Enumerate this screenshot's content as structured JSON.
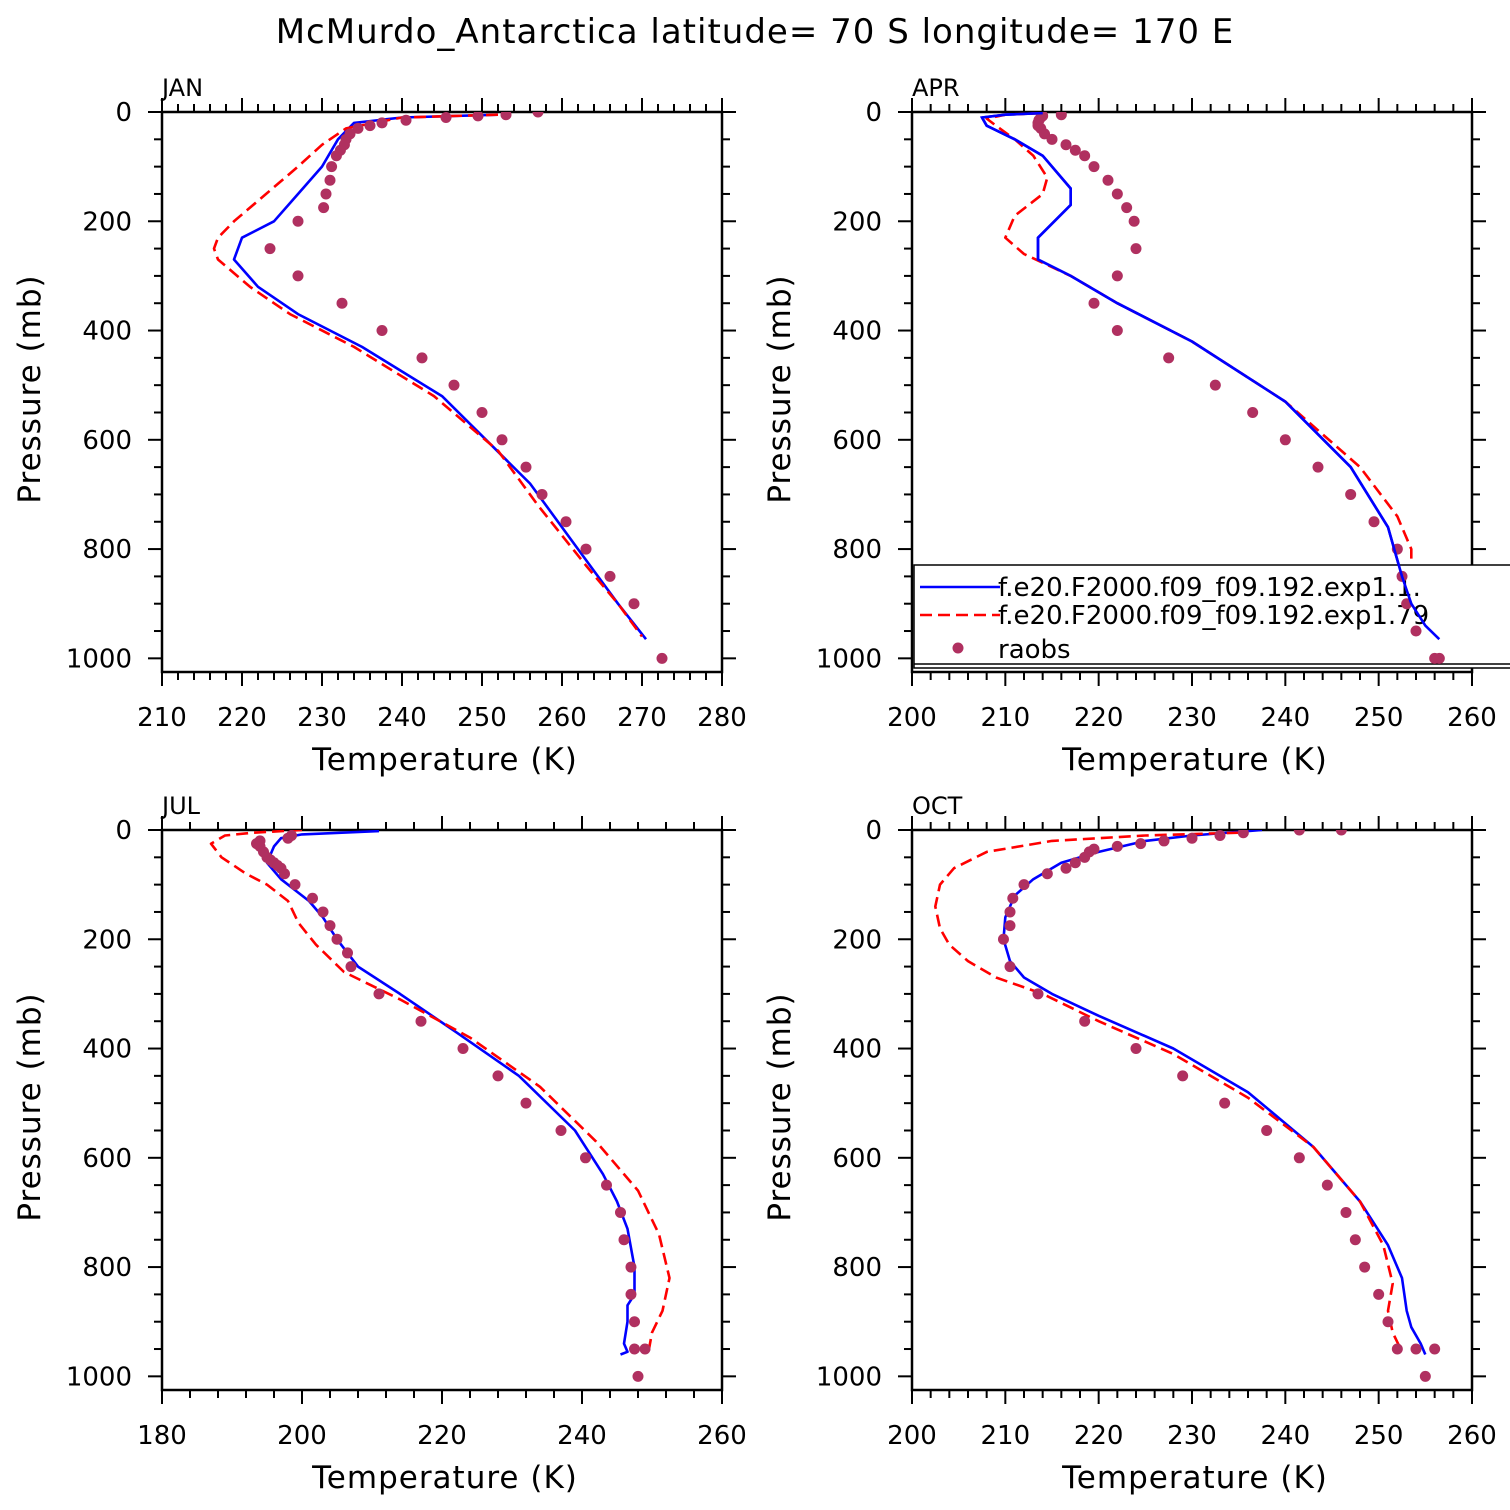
{
  "title": "McMurdo_Antarctica  latitude= 70 S longitude= 170 E",
  "colors": {
    "series1": "#0000ff",
    "series2": "#ff0000",
    "obs": "#b03060",
    "axis": "#000000"
  },
  "legend": {
    "entries": [
      {
        "label": "f.e20.F2000.f09_f09.192.exp1.1.",
        "style": "solid-line"
      },
      {
        "label": "f.e20.F2000.f09_f09.192.exp1.79",
        "style": "dashed-line"
      },
      {
        "label": "raobs",
        "style": "dot"
      }
    ]
  },
  "chart_data": [
    {
      "type": "line",
      "panel": "JAN",
      "title": "JAN",
      "xlabel": "Temperature (K)",
      "ylabel": "Pressure (mb)",
      "xlim": [
        210,
        280
      ],
      "ylim": [
        1025,
        0
      ],
      "xticks": [
        210,
        220,
        230,
        240,
        250,
        260,
        270,
        280
      ],
      "yticks": [
        0,
        200,
        400,
        600,
        800,
        1000
      ],
      "series": [
        {
          "name": "f.e20.F2000.f09_f09.192.exp1.1.",
          "style": "solid",
          "x": [
            252,
            240,
            234,
            232,
            230,
            227,
            224,
            220,
            219,
            222,
            227,
            235,
            245,
            256,
            262,
            267,
            270.5
          ],
          "y": [
            5,
            10,
            20,
            50,
            100,
            150,
            200,
            230,
            270,
            320,
            370,
            430,
            520,
            680,
            800,
            900,
            965
          ]
        },
        {
          "name": "f.e20.F2000.f09_f09.192.exp1.79",
          "style": "dashed",
          "x": [
            252,
            240,
            233,
            230,
            227,
            223,
            219,
            217,
            216.5,
            217,
            221,
            226,
            234,
            244,
            252,
            257,
            263,
            267,
            270
          ],
          "y": [
            5,
            10,
            30,
            60,
            100,
            150,
            200,
            230,
            250,
            270,
            320,
            370,
            430,
            520,
            620,
            720,
            830,
            900,
            960
          ]
        },
        {
          "name": "raobs",
          "style": "dots",
          "x": [
            257,
            253,
            249.5,
            245.5,
            240.5,
            237.5,
            236,
            234.5,
            233.5,
            233,
            232.8,
            232.3,
            231.8,
            231.2,
            231,
            230.5,
            230.2,
            227,
            223.5,
            227,
            232.5,
            237.5,
            242.5,
            246.5,
            250,
            252.5,
            255.5,
            257.5,
            260.5,
            263,
            266,
            269,
            272.5
          ],
          "y": [
            0,
            5,
            7,
            10,
            15,
            20,
            25,
            30,
            40,
            50,
            60,
            70,
            80,
            100,
            125,
            150,
            175,
            200,
            250,
            300,
            350,
            400,
            450,
            500,
            550,
            600,
            650,
            700,
            750,
            800,
            850,
            900,
            1000
          ]
        }
      ]
    },
    {
      "type": "line",
      "panel": "APR",
      "title": "APR",
      "xlabel": "Temperature (K)",
      "ylabel": "Pressure (mb)",
      "xlim": [
        200,
        260
      ],
      "ylim": [
        1025,
        0
      ],
      "xticks": [
        200,
        210,
        220,
        230,
        240,
        250,
        260
      ],
      "yticks": [
        0,
        200,
        400,
        600,
        800,
        1000
      ],
      "series": [
        {
          "name": "f.e20.F2000.f09_f09.192.exp1.1.",
          "style": "solid",
          "x": [
            214,
            210,
            207.5,
            208,
            211,
            214,
            217,
            217,
            213.5,
            213.5,
            217,
            222,
            230,
            240,
            247,
            251,
            252.5,
            253.5,
            255,
            256.5
          ],
          "y": [
            2,
            5,
            10,
            25,
            50,
            80,
            140,
            170,
            230,
            270,
            300,
            350,
            420,
            530,
            650,
            760,
            850,
            900,
            940,
            965
          ]
        },
        {
          "name": "f.e20.F2000.f09_f09.192.exp1.79",
          "style": "dashed",
          "x": [
            214,
            210,
            208,
            209,
            211,
            213,
            214.5,
            214,
            211,
            210,
            212,
            217,
            222,
            230,
            240,
            248,
            252,
            253.5,
            253.5,
            255,
            256
          ],
          "y": [
            2,
            5,
            12,
            25,
            50,
            80,
            120,
            150,
            190,
            230,
            260,
            300,
            350,
            420,
            530,
            650,
            740,
            800,
            870,
            920,
            960
          ]
        },
        {
          "name": "raobs",
          "style": "dots",
          "x": [
            216,
            214,
            213.8,
            213.6,
            213.5,
            213.5,
            213.8,
            214.2,
            215,
            216.5,
            217.5,
            218.5,
            219.5,
            221,
            222,
            223,
            223.8,
            224,
            222,
            219.5,
            222,
            227.5,
            232.5,
            236.5,
            240,
            243.5,
            247,
            249.5,
            252,
            252.5,
            253,
            254,
            256,
            256.5
          ],
          "y": [
            5,
            7,
            10,
            15,
            20,
            25,
            30,
            40,
            50,
            60,
            70,
            80,
            100,
            125,
            150,
            175,
            200,
            250,
            300,
            350,
            400,
            450,
            500,
            550,
            600,
            650,
            700,
            750,
            800,
            850,
            900,
            950,
            1000,
            1000
          ]
        }
      ]
    },
    {
      "type": "line",
      "panel": "JUL",
      "title": "JUL",
      "xlabel": "Temperature (K)",
      "ylabel": "Pressure (mb)",
      "xlim": [
        180,
        260
      ],
      "ylim": [
        1025,
        0
      ],
      "xticks": [
        180,
        200,
        220,
        240,
        260
      ],
      "yticks": [
        0,
        200,
        400,
        600,
        800,
        1000
      ],
      "series": [
        {
          "name": "f.e20.F2000.f09_f09.192.exp1.1.",
          "style": "solid",
          "x": [
            211,
            200,
            197,
            196,
            195,
            197,
            199,
            201,
            203,
            205,
            208,
            214,
            222,
            231,
            239,
            243,
            245,
            246.5,
            247.5,
            247.5,
            246.5,
            246.5,
            246,
            246.5,
            245.5
          ],
          "y": [
            2,
            8,
            15,
            30,
            60,
            90,
            110,
            130,
            160,
            200,
            250,
            300,
            370,
            450,
            550,
            630,
            680,
            730,
            800,
            850,
            870,
            900,
            940,
            955,
            960
          ]
        },
        {
          "name": "f.e20.F2000.f09_f09.192.exp1.79",
          "style": "dashed",
          "x": [
            200,
            193,
            189,
            187,
            188.5,
            192,
            195,
            198,
            199.5,
            202,
            206,
            214,
            224,
            234,
            242,
            248,
            251,
            252.5,
            251.5,
            250,
            249.5
          ],
          "y": [
            0,
            5,
            10,
            25,
            50,
            80,
            100,
            130,
            170,
            210,
            260,
            310,
            380,
            470,
            570,
            660,
            740,
            820,
            880,
            920,
            955
          ]
        },
        {
          "name": "raobs",
          "style": "dots",
          "x": [
            198.5,
            198,
            194,
            193.5,
            194,
            194.5,
            195,
            195.5,
            196,
            196.5,
            197,
            197.5,
            199,
            201.5,
            203,
            204,
            205,
            206.5,
            207,
            211,
            217,
            223,
            228,
            232,
            237,
            240.5,
            243.5,
            245.5,
            246,
            247,
            247,
            247.5,
            247.5,
            248,
            249
          ],
          "y": [
            10,
            15,
            20,
            25,
            30,
            40,
            50,
            55,
            60,
            65,
            70,
            80,
            100,
            125,
            150,
            175,
            200,
            225,
            250,
            300,
            350,
            400,
            450,
            500,
            550,
            600,
            650,
            700,
            750,
            800,
            850,
            900,
            950,
            1000,
            950
          ]
        }
      ]
    },
    {
      "type": "line",
      "panel": "OCT",
      "title": "OCT",
      "xlabel": "Temperature (K)",
      "ylabel": "Pressure (mb)",
      "xlim": [
        200,
        260
      ],
      "ylim": [
        1025,
        0
      ],
      "xticks": [
        200,
        210,
        220,
        230,
        240,
        250,
        260
      ],
      "yticks": [
        0,
        200,
        400,
        600,
        800,
        1000
      ],
      "series": [
        {
          "name": "f.e20.F2000.f09_f09.192.exp1.1.",
          "style": "solid",
          "x": [
            237.5,
            230,
            225,
            220,
            216,
            213,
            211,
            210,
            209.8,
            210.5,
            212,
            215,
            220,
            228,
            236,
            243,
            248,
            251,
            252.5,
            253,
            253.5,
            254.5,
            255
          ],
          "y": [
            0,
            10,
            20,
            40,
            60,
            90,
            120,
            160,
            200,
            240,
            270,
            300,
            340,
            400,
            480,
            580,
            680,
            760,
            820,
            880,
            910,
            940,
            960
          ]
        },
        {
          "name": "f.e20.F2000.f09_f09.192.exp1.79",
          "style": "dashed",
          "x": [
            235,
            225,
            215,
            208,
            204.5,
            203,
            202.5,
            203,
            204,
            206,
            209,
            214,
            220,
            228,
            236,
            243,
            248,
            250.5,
            251.5,
            251,
            251.5,
            252.5
          ],
          "y": [
            5,
            10,
            20,
            40,
            70,
            100,
            140,
            180,
            210,
            240,
            270,
            300,
            350,
            410,
            490,
            580,
            680,
            760,
            830,
            880,
            920,
            955
          ]
        },
        {
          "name": "raobs",
          "style": "dots",
          "x": [
            246,
            241.5,
            235.5,
            233,
            230,
            227,
            224.5,
            222,
            219.5,
            219,
            218.5,
            217.5,
            216.5,
            214.5,
            212,
            210.8,
            210.5,
            210.5,
            209.8,
            210.5,
            213.5,
            218.5,
            224,
            229,
            233.5,
            238,
            241.5,
            244.5,
            246.5,
            247.5,
            248.5,
            250,
            251,
            252,
            254,
            255,
            256
          ],
          "y": [
            0,
            0,
            5,
            10,
            15,
            20,
            25,
            30,
            35,
            40,
            50,
            60,
            70,
            80,
            100,
            125,
            150,
            175,
            200,
            250,
            300,
            350,
            400,
            450,
            500,
            550,
            600,
            650,
            700,
            750,
            800,
            850,
            900,
            950,
            950,
            1000,
            950
          ]
        }
      ]
    }
  ]
}
